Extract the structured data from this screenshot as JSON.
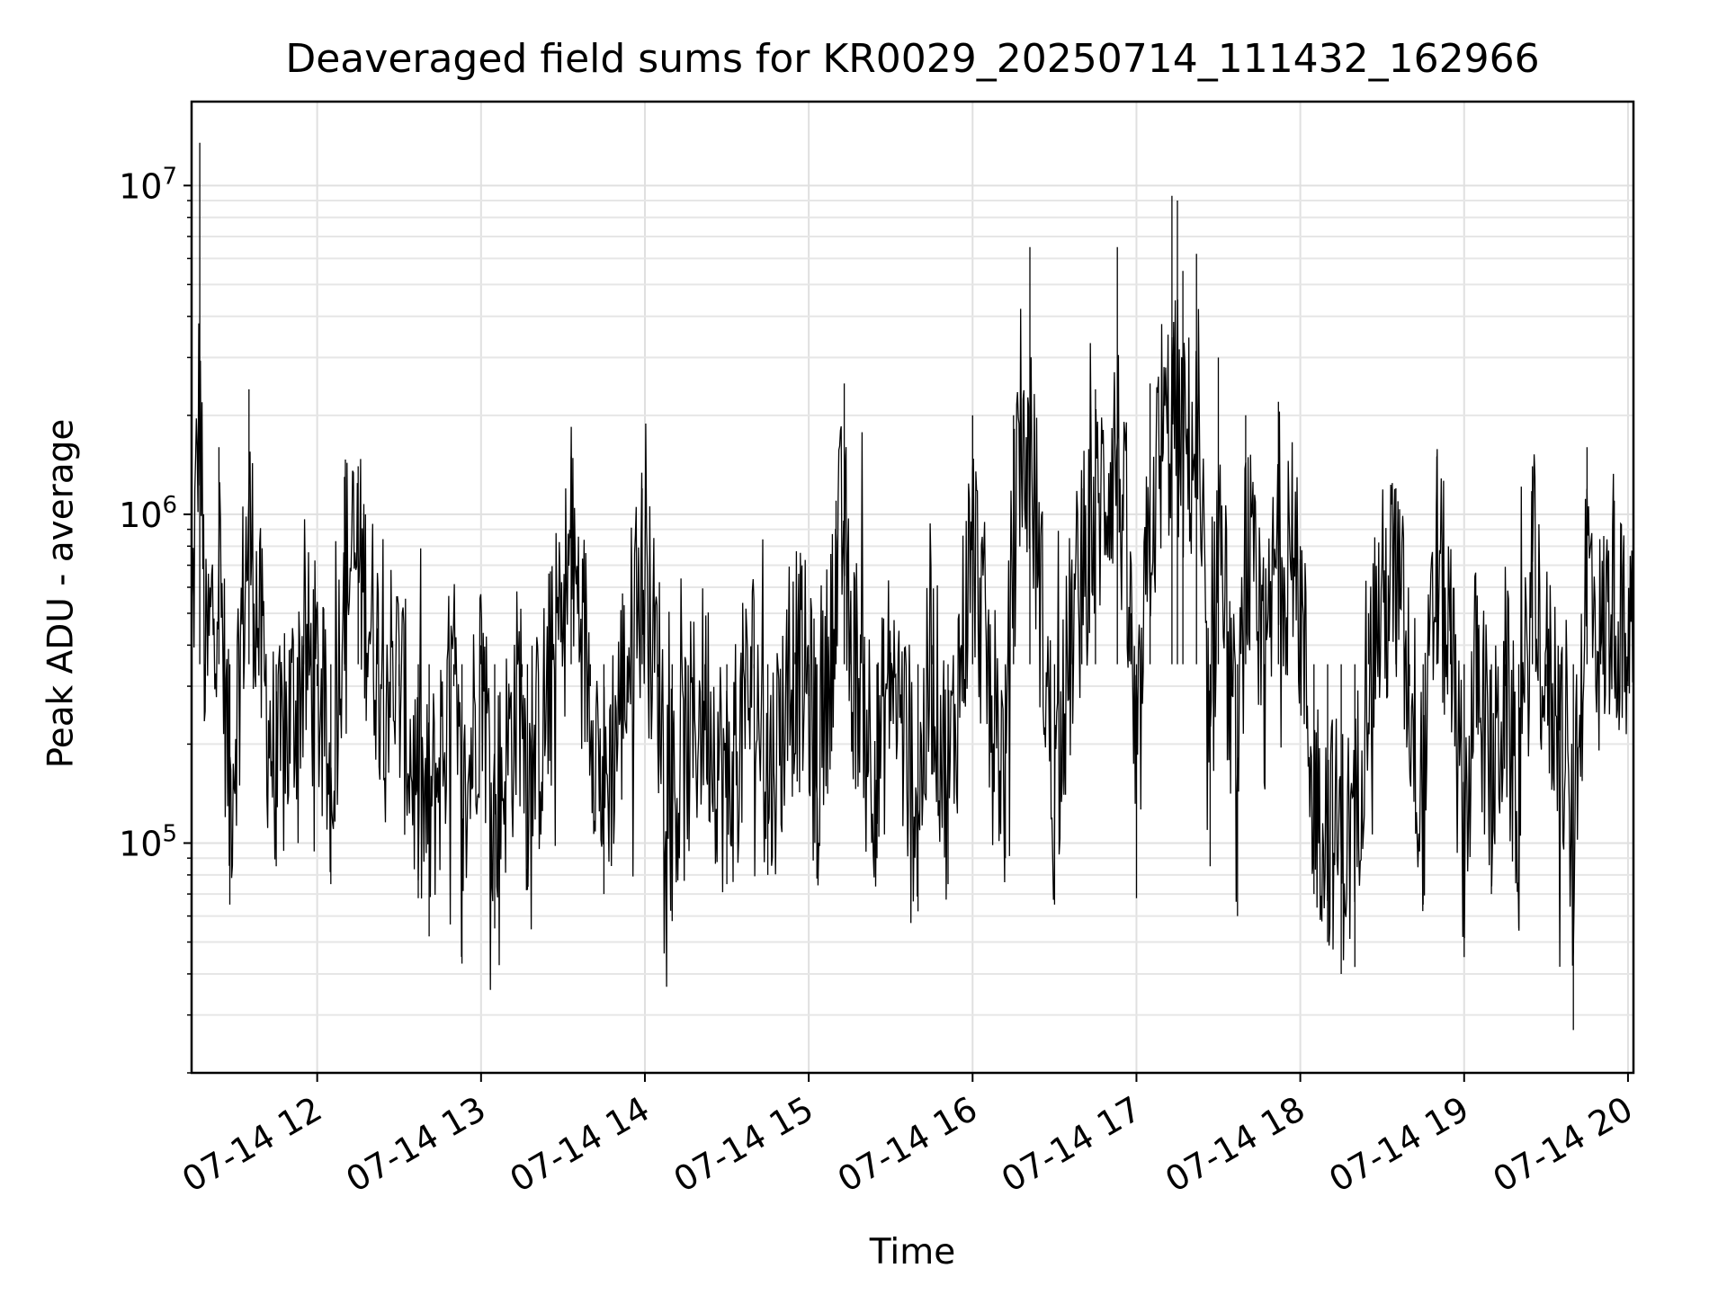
{
  "chart_data": {
    "type": "line",
    "title": "Deaveraged field sums for KR0029_20250714_111432_162966",
    "xlabel": "Time",
    "ylabel": "Peak ADU - average",
    "yscale": "log",
    "ylim": [
      20000,
      18000000
    ],
    "xlim": [
      "07-14 11:14",
      "07-14 20:02"
    ],
    "x_ticks": [
      "07-14 12",
      "07-14 13",
      "07-14 14",
      "07-14 15",
      "07-14 16",
      "07-14 17",
      "07-14 18",
      "07-14 19",
      "07-14 20"
    ],
    "y_ticks": [
      {
        "base": "10",
        "exp": "5",
        "value": 100000
      },
      {
        "base": "10",
        "exp": "6",
        "value": 1000000
      },
      {
        "base": "10",
        "exp": "7",
        "value": 10000000
      }
    ],
    "grid": true,
    "line_color": "#000000",
    "series": [
      {
        "points": [
          [
            "07-14 11:14",
            500000
          ],
          [
            "07-14 11:17",
            13500000
          ],
          [
            "07-14 11:19",
            300000
          ],
          [
            "07-14 11:24",
            1600000
          ],
          [
            "07-14 11:28",
            65000
          ],
          [
            "07-14 11:35",
            2400000
          ],
          [
            "07-14 11:40",
            350000
          ],
          [
            "07-14 11:45",
            85000
          ],
          [
            "07-14 11:55",
            400000
          ],
          [
            "07-14 12:00",
            300000
          ],
          [
            "07-14 12:05",
            75000
          ],
          [
            "07-14 12:10",
            1300000
          ],
          [
            "07-14 12:15",
            1400000
          ],
          [
            "07-14 12:22",
            450000
          ],
          [
            "07-14 12:30",
            300000
          ],
          [
            "07-14 12:37",
            68000
          ],
          [
            "07-14 12:41",
            52000
          ],
          [
            "07-14 12:50",
            300000
          ],
          [
            "07-14 12:53",
            43000
          ],
          [
            "07-14 13:00",
            400000
          ],
          [
            "07-14 13:05",
            55000
          ],
          [
            "07-14 13:15",
            320000
          ],
          [
            "07-14 13:17",
            72000
          ],
          [
            "07-14 13:25",
            270000
          ],
          [
            "07-14 13:33",
            1500000
          ],
          [
            "07-14 13:40",
            300000
          ],
          [
            "07-14 13:45",
            70000
          ],
          [
            "07-14 13:52",
            280000
          ],
          [
            "07-14 13:59",
            1200000
          ],
          [
            "07-14 14:05",
            320000
          ],
          [
            "07-14 14:10",
            62000
          ],
          [
            "07-14 14:22",
            260000
          ],
          [
            "07-14 14:30",
            75000
          ],
          [
            "07-14 14:40",
            340000
          ],
          [
            "07-14 14:45",
            80000
          ],
          [
            "07-14 14:55",
            380000
          ],
          [
            "07-14 15:00",
            280000
          ],
          [
            "07-14 15:03",
            78000
          ],
          [
            "07-14 15:10",
            1100000
          ],
          [
            "07-14 15:13",
            2500000
          ],
          [
            "07-14 15:15",
            400000
          ],
          [
            "07-14 15:20",
            300000
          ],
          [
            "07-14 15:25",
            90000
          ],
          [
            "07-14 15:30",
            380000
          ],
          [
            "07-14 15:40",
            62000
          ],
          [
            "07-14 15:45",
            400000
          ],
          [
            "07-14 15:51",
            75000
          ],
          [
            "07-14 16:00",
            2000000
          ],
          [
            "07-14 16:06",
            300000
          ],
          [
            "07-14 16:12",
            90000
          ],
          [
            "07-14 16:15",
            2000000
          ],
          [
            "07-14 16:21",
            6500000
          ],
          [
            "07-14 16:30",
            65000
          ],
          [
            "07-14 16:36",
            500000
          ],
          [
            "07-14 16:40",
            1200000
          ],
          [
            "07-14 16:45",
            2400000
          ],
          [
            "07-14 16:53",
            6500000
          ],
          [
            "07-14 16:58",
            500000
          ],
          [
            "07-14 17:00",
            68000
          ],
          [
            "07-14 17:05",
            2500000
          ],
          [
            "07-14 17:13",
            9300000
          ],
          [
            "07-14 17:15",
            9000000
          ],
          [
            "07-14 17:17",
            5500000
          ],
          [
            "07-14 17:22",
            6200000
          ],
          [
            "07-14 17:27",
            85000
          ],
          [
            "07-14 17:30",
            3000000
          ],
          [
            "07-14 17:37",
            60000
          ],
          [
            "07-14 17:40",
            2000000
          ],
          [
            "07-14 17:47",
            250000
          ],
          [
            "07-14 17:52",
            2200000
          ],
          [
            "07-14 18:00",
            800000
          ],
          [
            "07-14 18:05",
            70000
          ],
          [
            "07-14 18:10",
            50000
          ],
          [
            "07-14 18:15",
            40000
          ],
          [
            "07-14 18:20",
            42000
          ],
          [
            "07-14 18:25",
            500000
          ],
          [
            "07-14 18:35",
            1200000
          ],
          [
            "07-14 18:40",
            300000
          ],
          [
            "07-14 18:45",
            65000
          ],
          [
            "07-14 18:50",
            1500000
          ],
          [
            "07-14 18:55",
            450000
          ],
          [
            "07-14 19:00",
            45000
          ],
          [
            "07-14 19:05",
            450000
          ],
          [
            "07-14 19:10",
            70000
          ],
          [
            "07-14 19:15",
            300000
          ],
          [
            "07-14 19:20",
            55000
          ],
          [
            "07-14 19:25",
            1400000
          ],
          [
            "07-14 19:30",
            300000
          ],
          [
            "07-14 19:35",
            220000
          ],
          [
            "07-14 19:40",
            27000
          ],
          [
            "07-14 19:45",
            1600000
          ],
          [
            "07-14 19:50",
            450000
          ],
          [
            "07-14 19:55",
            1100000
          ],
          [
            "07-14 20:00",
            300000
          ],
          [
            "07-14 20:02",
            1000000
          ]
        ]
      }
    ]
  }
}
